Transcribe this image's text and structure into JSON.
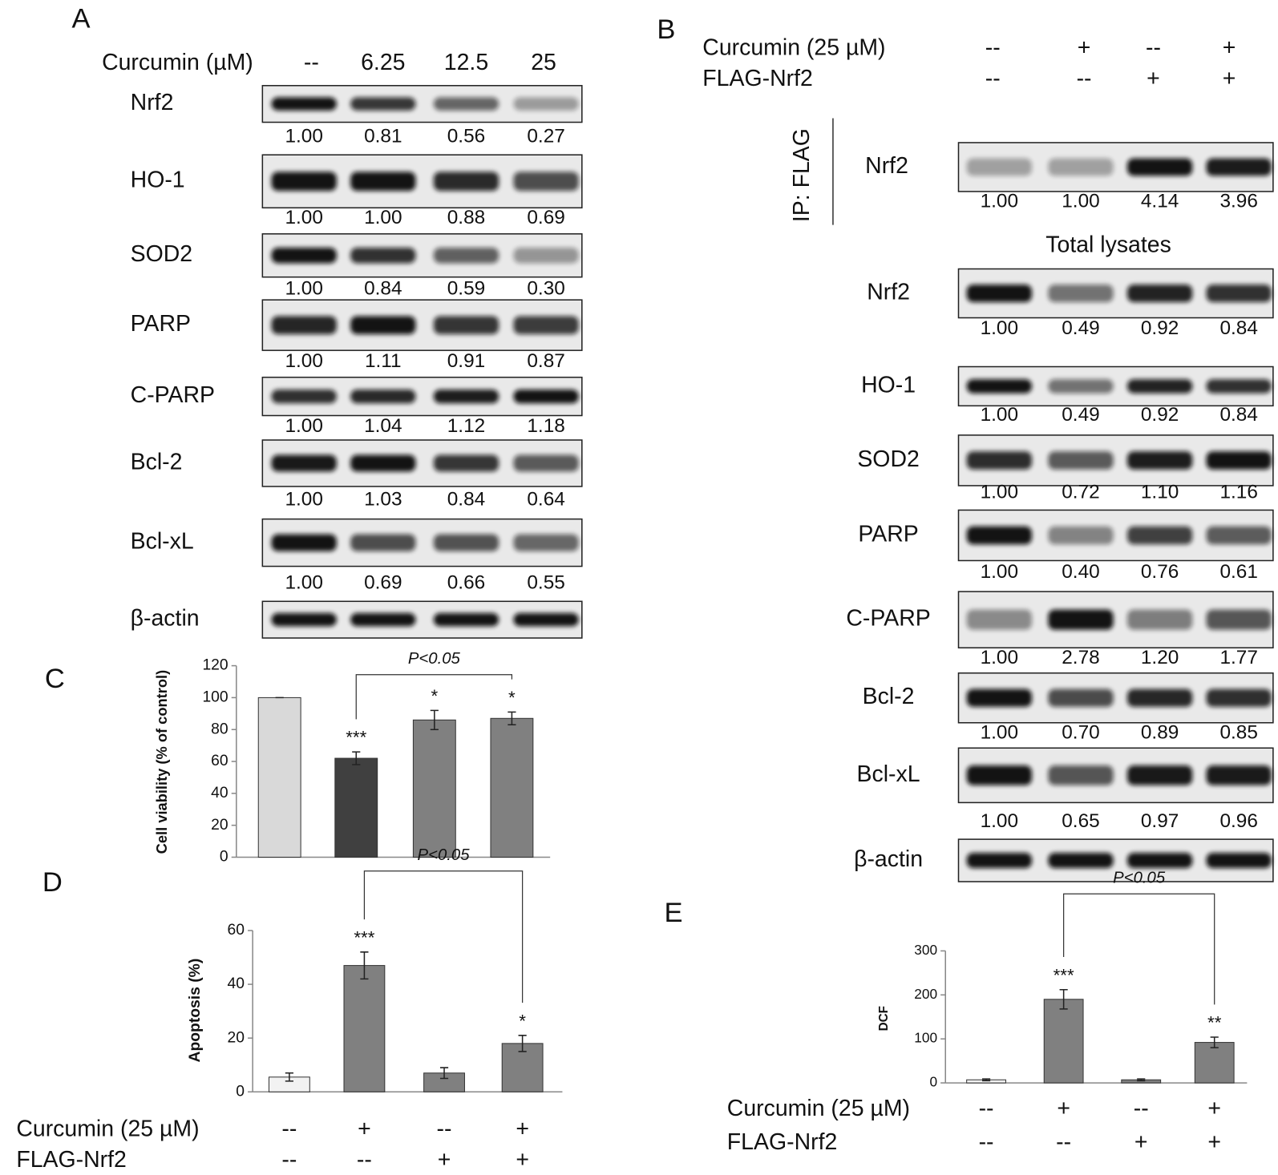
{
  "panel_labels": [
    "A",
    "B",
    "C",
    "D",
    "E"
  ],
  "blot_a": {
    "header_label": "Curcumin (µM)",
    "doses": [
      "--",
      "6.25",
      "12.5",
      "25"
    ],
    "rows": [
      {
        "protein": "Nrf2",
        "values": [
          "1.00",
          "0.81",
          "0.56",
          "0.27"
        ]
      },
      {
        "protein": "HO-1",
        "values": [
          "1.00",
          "1.00",
          "0.88",
          "0.69"
        ]
      },
      {
        "protein": "SOD2",
        "values": [
          "1.00",
          "0.84",
          "0.59",
          "0.30"
        ]
      },
      {
        "protein": "PARP",
        "values": [
          "1.00",
          "1.11",
          "0.91",
          "0.87"
        ]
      },
      {
        "protein": "C-PARP",
        "values": [
          "1.00",
          "1.04",
          "1.12",
          "1.18"
        ]
      },
      {
        "protein": "Bcl-2",
        "values": [
          "1.00",
          "1.03",
          "0.84",
          "0.64"
        ]
      },
      {
        "protein": "Bcl-xL",
        "values": [
          "1.00",
          "0.69",
          "0.66",
          "0.55"
        ]
      },
      {
        "protein": "β-actin"
      }
    ]
  },
  "blot_b": {
    "conditions": [
      {
        "label": "Curcumin (25 µM)",
        "marks": [
          "--",
          "+",
          "--",
          "+"
        ]
      },
      {
        "label": "FLAG-Nrf2",
        "marks": [
          "--",
          "--",
          "+",
          "+"
        ]
      }
    ],
    "ip_label": "IP: FLAG",
    "ip_rows": [
      {
        "protein": "Nrf2",
        "values": [
          "1.00",
          "1.00",
          "4.14",
          "3.96"
        ]
      }
    ],
    "total_label": "Total lysates",
    "rows": [
      {
        "protein": "Nrf2",
        "values": [
          "1.00",
          "0.49",
          "0.92",
          "0.84"
        ]
      },
      {
        "protein": "HO-1",
        "values": [
          "1.00",
          "0.49",
          "0.92",
          "0.84"
        ]
      },
      {
        "protein": "SOD2",
        "values": [
          "1.00",
          "0.72",
          "1.10",
          "1.16"
        ]
      },
      {
        "protein": "PARP",
        "values": [
          "1.00",
          "0.40",
          "0.76",
          "0.61"
        ]
      },
      {
        "protein": "C-PARP",
        "values": [
          "1.00",
          "2.78",
          "1.20",
          "1.77"
        ]
      },
      {
        "protein": "Bcl-2",
        "values": [
          "1.00",
          "0.70",
          "0.89",
          "0.85"
        ]
      },
      {
        "protein": "Bcl-xL",
        "values": [
          "1.00",
          "0.65",
          "0.97",
          "0.96"
        ]
      },
      {
        "protein": "β-actin"
      }
    ]
  },
  "chart_data": [
    {
      "type": "bar",
      "y_label": "Cell viability (% of control)",
      "categories": [
        null,
        null,
        null,
        null
      ],
      "values": [
        100,
        62,
        86,
        87
      ],
      "errors": [
        0,
        4,
        6,
        4
      ],
      "colors": [
        "#d9d9d9",
        "#404040",
        "#808080",
        "#808080"
      ],
      "significance": [
        null,
        "***",
        "*",
        "*"
      ],
      "bracket": {
        "text": "P<0.05",
        "from": 1,
        "to": 3
      },
      "ylim": [
        0,
        120
      ],
      "yticks": [
        0,
        20,
        40,
        60,
        80,
        100,
        120
      ]
    },
    {
      "type": "bar",
      "y_label": "Apoptosis (%)",
      "categories": [
        null,
        null,
        null,
        null
      ],
      "values": [
        5.5,
        47,
        7,
        18
      ],
      "errors": [
        1.5,
        5,
        2,
        3
      ],
      "colors": [
        "#f2f2f2",
        "#808080",
        "#808080",
        "#808080"
      ],
      "significance": [
        null,
        "***",
        null,
        "*"
      ],
      "bracket": {
        "text": "P<0.05",
        "from": 1,
        "to": 3
      },
      "ylim": [
        0,
        60
      ],
      "yticks": [
        0,
        20,
        40,
        60
      ],
      "conditions": [
        {
          "label": "Curcumin (25 µM)",
          "marks": [
            "--",
            "+",
            "--",
            "+"
          ]
        },
        {
          "label": "FLAG-Nrf2",
          "marks": [
            "--",
            "--",
            "+",
            "+"
          ]
        }
      ]
    },
    {
      "type": "bar",
      "y_label": "DCF",
      "categories": [
        null,
        null,
        null,
        null
      ],
      "values": [
        7,
        190,
        7,
        92
      ],
      "errors": [
        2,
        22,
        2,
        12
      ],
      "colors": [
        "#f2f2f2",
        "#808080",
        "#808080",
        "#808080"
      ],
      "significance": [
        null,
        "***",
        null,
        "**"
      ],
      "bracket": {
        "text": "P<0.05",
        "from": 1,
        "to": 3
      },
      "ylim": [
        0,
        300
      ],
      "yticks": [
        0,
        100,
        200,
        300
      ],
      "conditions": [
        {
          "label": "Curcumin (25 µM)",
          "marks": [
            "--",
            "+",
            "--",
            "+"
          ]
        },
        {
          "label": "FLAG-Nrf2",
          "marks": [
            "--",
            "--",
            "+",
            "+"
          ]
        }
      ]
    }
  ]
}
